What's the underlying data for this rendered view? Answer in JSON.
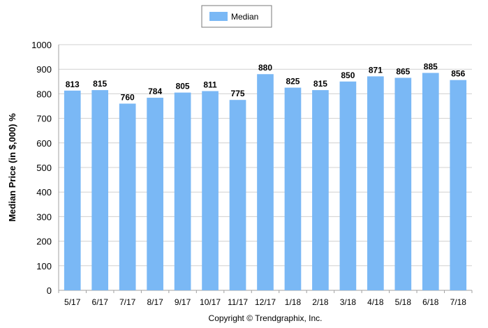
{
  "chart_data": {
    "type": "bar",
    "categories": [
      "5/17",
      "6/17",
      "7/17",
      "8/17",
      "9/17",
      "10/17",
      "11/17",
      "12/17",
      "1/18",
      "2/18",
      "3/18",
      "4/18",
      "5/18",
      "6/18",
      "7/18"
    ],
    "series": [
      {
        "name": "Median",
        "values": [
          813,
          815,
          760,
          784,
          805,
          811,
          775,
          880,
          825,
          815,
          850,
          871,
          865,
          885,
          856
        ],
        "color": "#7ab8f5"
      }
    ],
    "data_labels": [
      "813",
      "815",
      "760",
      "784",
      "805",
      "811",
      "775",
      "880",
      "825",
      "815",
      "850",
      "871",
      "865",
      "885",
      "856"
    ],
    "ylabel": "Median Price (in $,000) %",
    "xlabel": "",
    "ylim": [
      0,
      1000
    ],
    "yticks": [
      0,
      100,
      200,
      300,
      400,
      500,
      600,
      700,
      800,
      900,
      1000
    ],
    "ytick_labels": [
      "0",
      "100",
      "200",
      "300",
      "400",
      "500",
      "600",
      "700",
      "800",
      "900",
      "1000"
    ],
    "grid": true,
    "legend_position": "top-center"
  },
  "legend": {
    "label": "Median"
  },
  "footer": {
    "copyright": "Copyright © Trendgraphix, Inc."
  },
  "colors": {
    "bar": "#7ab8f5",
    "grid": "#d0d0d0",
    "axis": "#a0a0a0"
  }
}
